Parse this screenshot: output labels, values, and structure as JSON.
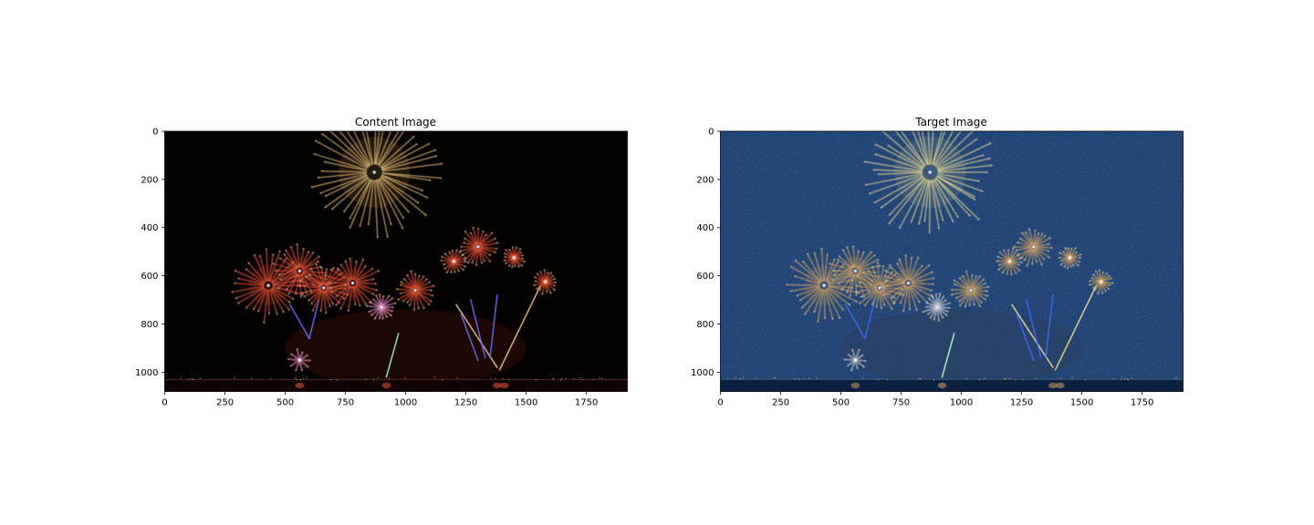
{
  "chart_data": [
    {
      "type": "image",
      "title": "Content Image",
      "image_size": [
        1920,
        1080
      ],
      "xlim": [
        0,
        1920
      ],
      "ylim": [
        1080,
        0
      ],
      "x_ticks": [
        0,
        250,
        500,
        750,
        1000,
        1250,
        1500,
        1750
      ],
      "y_ticks": [
        0,
        200,
        400,
        600,
        800,
        1000
      ],
      "palette": {
        "sky": "#050100",
        "warm": "#ff5a3a",
        "gold": "#f2c77a",
        "pink": "#ff9ad9",
        "green": "#a8ffb0",
        "blue": "#6a6aff"
      }
    },
    {
      "type": "image",
      "title": "Target Image",
      "image_size": [
        1920,
        1080
      ],
      "xlim": [
        0,
        1920
      ],
      "ylim": [
        1080,
        0
      ],
      "x_ticks": [
        0,
        250,
        500,
        750,
        1000,
        1250,
        1500,
        1750
      ],
      "y_ticks": [
        0,
        200,
        400,
        600,
        800,
        1000
      ],
      "palette": {
        "sky": "#0d2a55",
        "warm": "#e0a85a",
        "gold": "#f0e090",
        "pink": "#dddddd",
        "green": "#b8ffc0",
        "blue": "#3a6cff"
      }
    }
  ],
  "fireworks": [
    {
      "x": 870,
      "y": 170,
      "r": 270,
      "color": "gold",
      "rays": 46
    },
    {
      "x": 430,
      "y": 640,
      "r": 150,
      "color": "warm",
      "rays": 30
    },
    {
      "x": 560,
      "y": 580,
      "r": 110,
      "color": "warm",
      "rays": 26
    },
    {
      "x": 660,
      "y": 650,
      "r": 100,
      "color": "warm",
      "rays": 26
    },
    {
      "x": 780,
      "y": 630,
      "r": 115,
      "color": "warm",
      "rays": 26
    },
    {
      "x": 1040,
      "y": 660,
      "r": 80,
      "color": "warm",
      "rays": 24
    },
    {
      "x": 1200,
      "y": 540,
      "r": 55,
      "color": "warm",
      "rays": 18
    },
    {
      "x": 1300,
      "y": 480,
      "r": 80,
      "color": "warm",
      "rays": 24
    },
    {
      "x": 1450,
      "y": 525,
      "r": 45,
      "color": "warm",
      "rays": 18
    },
    {
      "x": 1580,
      "y": 625,
      "r": 50,
      "color": "warm",
      "rays": 18
    },
    {
      "x": 900,
      "y": 730,
      "r": 60,
      "color": "pink",
      "rays": 18
    },
    {
      "x": 560,
      "y": 950,
      "r": 45,
      "color": "pink",
      "rays": 10
    }
  ],
  "streaks": [
    {
      "x1": 920,
      "y1": 1020,
      "x2": 970,
      "y2": 840,
      "color": "green"
    },
    {
      "x1": 1380,
      "y1": 980,
      "x2": 1210,
      "y2": 720,
      "color": "gold"
    },
    {
      "x1": 1390,
      "y1": 990,
      "x2": 1560,
      "y2": 640,
      "color": "gold"
    },
    {
      "x1": 1330,
      "y1": 940,
      "x2": 1270,
      "y2": 700,
      "color": "blue"
    },
    {
      "x1": 1350,
      "y1": 940,
      "x2": 1380,
      "y2": 680,
      "color": "blue"
    },
    {
      "x1": 1300,
      "y1": 950,
      "x2": 1230,
      "y2": 760,
      "color": "blue"
    },
    {
      "x1": 600,
      "y1": 860,
      "x2": 520,
      "y2": 720,
      "color": "blue"
    },
    {
      "x1": 600,
      "y1": 860,
      "x2": 640,
      "y2": 700,
      "color": "blue"
    }
  ]
}
